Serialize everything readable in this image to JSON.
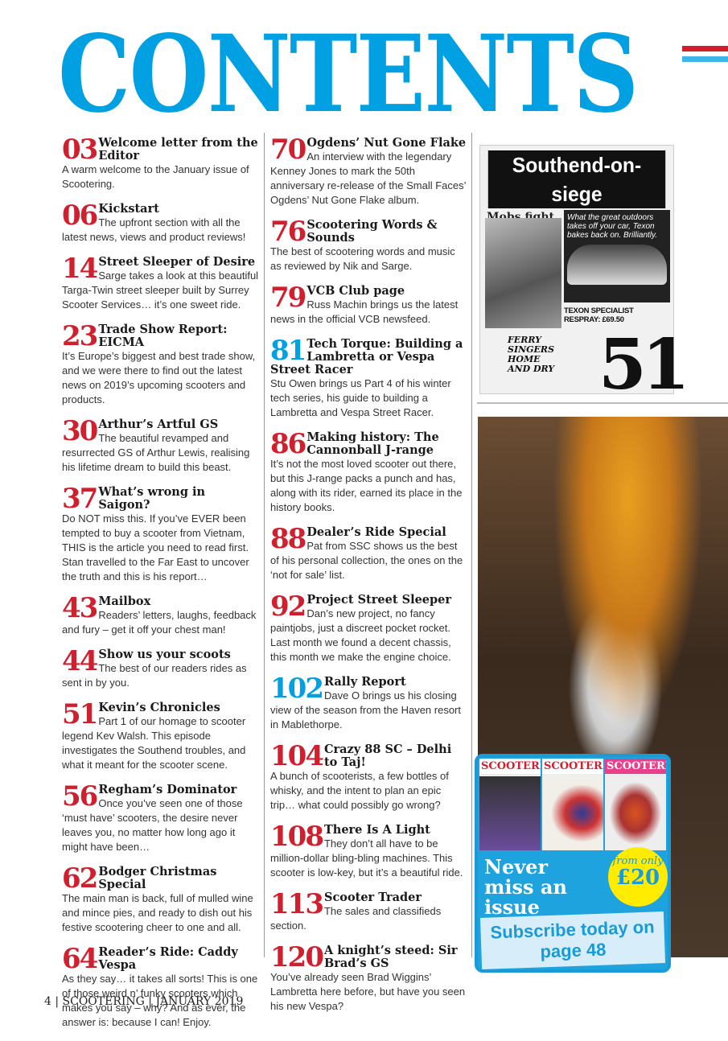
{
  "header": {
    "title": "CONTENTS",
    "colors": {
      "title": "#00a0e3",
      "page_numbers": "#d0202e",
      "highlight_numbers": "#00a0e3"
    }
  },
  "col1": [
    {
      "page": "03",
      "title": "Welcome letter from the Editor",
      "desc": "A warm welcome to the January issue of Scootering."
    },
    {
      "page": "06",
      "title": "Kickstart",
      "desc": "The upfront section with all the latest news, views and product reviews!"
    },
    {
      "page": "14",
      "title": "Street Sleeper of Desire",
      "desc": "Sarge takes a look at this beautiful Targa-Twin street sleeper built by Surrey Scooter Services… it’s one sweet ride."
    },
    {
      "page": "23",
      "title": "Trade Show Report: EICMA",
      "desc": "It’s Europe’s biggest and best trade show, and we were there to find out the latest news on 2019’s upcoming scooters and products."
    },
    {
      "page": "30",
      "title": "Arthur’s Artful GS",
      "desc": "The beautiful revamped and resurrected GS of Arthur Lewis, realising his lifetime dream to build this beast."
    },
    {
      "page": "37",
      "title": "What’s wrong in Saigon?",
      "desc": "Do NOT miss this. If you’ve EVER been tempted to buy a scooter from Vietnam, THIS is the article you need to read first. Stan travelled to the Far East to uncover the truth and this is his report…"
    },
    {
      "page": "43",
      "title": "Mailbox",
      "desc": "Readers’ letters, laughs, feedback and fury – get it off your chest man!"
    },
    {
      "page": "44",
      "title": "Show us your scoots",
      "desc": "The best of our readers rides as sent in by you."
    },
    {
      "page": "51",
      "title": "Kevin’s Chronicles",
      "desc": "Part 1 of our homage to scooter legend Kev Walsh. This episode investigates the Southend troubles, and what it meant for the scooter scene."
    },
    {
      "page": "56",
      "title": "Regham’s Dominator",
      "desc": "Once you’ve seen one of those ‘must have’ scooters, the desire never leaves you, no matter how long ago it might have been…"
    },
    {
      "page": "62",
      "title": "Bodger Christmas Special",
      "desc": "The main man is back, full of mulled wine and mince pies, and ready to dish out his festive scootering cheer to one and all."
    },
    {
      "page": "64",
      "title": "Reader’s Ride: Caddy Vespa",
      "desc": "As they say… it takes all sorts! This is one of those weird n’ funky scooters which makes you say – why? And as ever, the answer is: because I can! Enjoy."
    }
  ],
  "col2": [
    {
      "page": "70",
      "title": "Ogdens’ Nut Gone Flake",
      "desc": "An interview with the legendary Kenney Jones to mark the 50th anniversary re-release of the Small Faces’ Ogdens’ Nut Gone Flake album."
    },
    {
      "page": "76",
      "title": "Scootering Words & Sounds",
      "desc": "The best of scootering words and music as reviewed by Nik and Sarge."
    },
    {
      "page": "79",
      "title": "VCB Club page",
      "desc": "Russ Machin brings us the latest news in the official VCB newsfeed."
    },
    {
      "page": "81",
      "title": "Tech Torque: Building a Lambretta or Vespa Street Racer",
      "desc": "Stu Owen brings us Part 4 of his winter tech series, his guide to building a Lambretta and Vespa Street Racer.",
      "highlight": true
    },
    {
      "page": "86",
      "title": "Making history: The Cannonball J-range",
      "desc": "It’s not the most loved scooter out there, but this J-range packs a punch and has, along with its rider, earned its place in the history books."
    },
    {
      "page": "88",
      "title": "Dealer’s Ride Special",
      "desc": "Pat from SSC shows us the best of his personal collection, the ones on the ‘not for sale’ list."
    },
    {
      "page": "92",
      "title": "Project Street Sleeper",
      "desc": "Dan’s new project, no fancy paintjobs, just a discreet pocket rocket. Last month we found a decent chassis, this month we make the engine choice."
    },
    {
      "page": "102",
      "title": "Rally Report",
      "desc": "Dave O brings us his closing view of the season from the Haven resort in Mablethorpe.",
      "highlight": true
    },
    {
      "page": "104",
      "title": "Crazy 88 SC – Delhi to Taj!",
      "desc": "A bunch of scooterists, a few bottles of whisky, and the intent to plan an epic trip… what could possibly go wrong?"
    },
    {
      "page": "108",
      "title": "There Is A Light",
      "desc": "They don’t all have to be million-dollar bling-bling machines. This scooter is low-key, but it’s a beautiful ride."
    },
    {
      "page": "113",
      "title": "Scooter Trader",
      "desc": "The sales and classifieds section."
    },
    {
      "page": "120",
      "title": "A knight’s steed: Sir Brad’s GS",
      "desc": "You’ve already seen Brad Wiggins’ Lambretta here before, but have you seen his new Vespa?"
    }
  ],
  "feature": {
    "newspaper_headline": "Southend-on-siege",
    "newspaper_sub": "Mobs fight at seaside",
    "newspaper_ad": "What the great outdoors takes off your car, Texon bakes back on. Brilliantly.",
    "newspaper_texon": "TEXON SPECIALIST RESPRAY: £69.50",
    "newspaper_ferry": "FERRY SINGERS HOME AND DRY",
    "page_ref": "51"
  },
  "subscribe": {
    "covers": [
      "SCOOTERING",
      "SCOOTERING",
      "SCOOTERING"
    ],
    "headline": "Never miss an issue",
    "from": "from only",
    "price": "£20",
    "cta": "Subscribe today on page 48"
  },
  "footer": {
    "text": "4 | SCOOTERING | JANUARY 2019"
  }
}
